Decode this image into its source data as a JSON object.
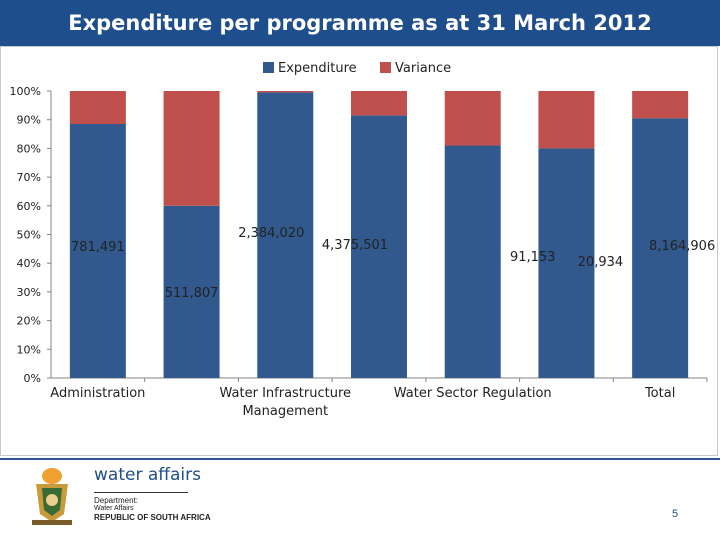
{
  "slide": {
    "title": "Expenditure per programme as at 31 March 2012",
    "page_number": "5"
  },
  "footer": {
    "brand": "water affairs",
    "dept_line1": "Department:",
    "dept_line2": "Water Affairs",
    "dept_line3": "REPUBLIC OF SOUTH AFRICA"
  },
  "colors": {
    "title_bg": "#1f4e8c",
    "expenditure": "#31598e",
    "variance": "#c0504d",
    "footer_rule": "#2f5597"
  },
  "chart_data": {
    "type": "bar",
    "stacked": true,
    "percent": true,
    "title": "",
    "xlabel": "",
    "ylabel": "",
    "ylim": [
      0,
      100
    ],
    "yticks": [
      "0%",
      "10%",
      "20%",
      "30%",
      "40%",
      "50%",
      "60%",
      "70%",
      "80%",
      "90%",
      "100%"
    ],
    "grid": false,
    "legend": {
      "position": "top",
      "entries": [
        "Expenditure",
        "Variance"
      ]
    },
    "categories": [
      "Administration",
      "",
      "Water Infrastructure Management",
      "",
      "Water Sector Regulation",
      "",
      "Total"
    ],
    "category_labels_lines": [
      [
        "Administration"
      ],
      [],
      [
        "Water Infrastructure",
        "Management"
      ],
      [],
      [
        "Water Sector Regulation"
      ],
      [],
      [
        "Total"
      ]
    ],
    "series": [
      {
        "name": "Expenditure",
        "values": [
          88.5,
          60,
          99.5,
          91.5,
          81,
          80,
          90.5
        ]
      },
      {
        "name": "Variance",
        "values": [
          11.5,
          40,
          0.5,
          8.5,
          19,
          20,
          9.5
        ]
      }
    ],
    "annotations": [
      "781,491",
      "511,807",
      "2,384,020",
      "4,375,501",
      "91,153",
      "20,934",
      "8,164,906"
    ]
  }
}
